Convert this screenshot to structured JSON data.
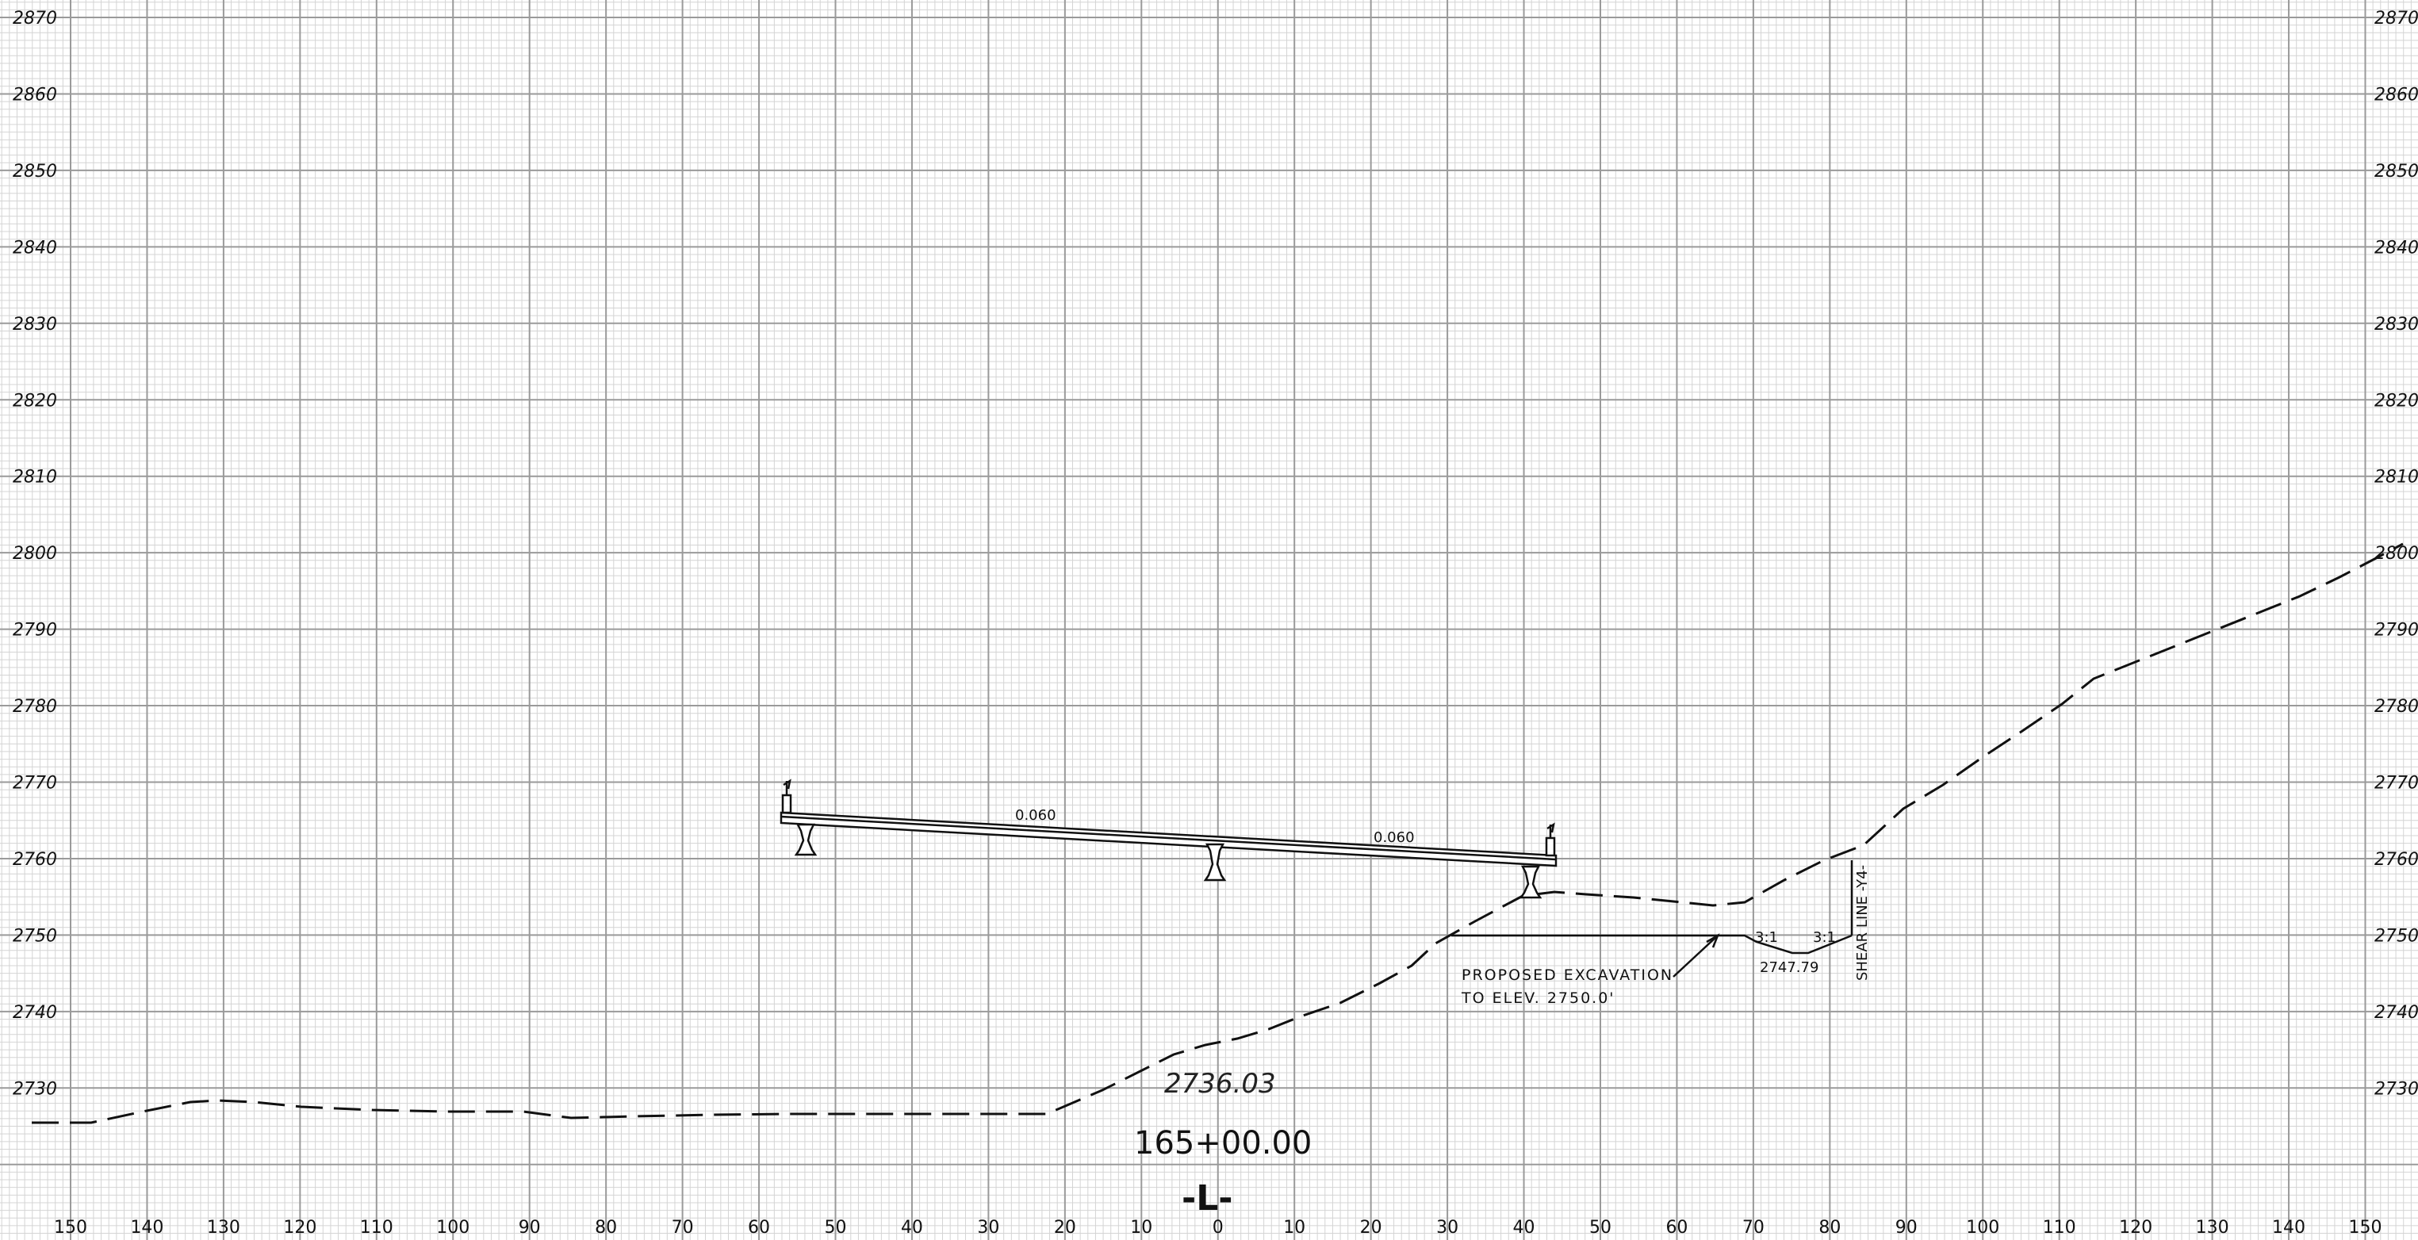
{
  "sheet": {
    "elevation_labels": [
      "2870",
      "2860",
      "2850",
      "2840",
      "2830",
      "2820",
      "2810",
      "2800",
      "2790",
      "2780",
      "2770",
      "2760",
      "2750",
      "2740",
      "2730"
    ],
    "offset_labels": [
      "150",
      "140",
      "130",
      "120",
      "110",
      "100",
      "90",
      "80",
      "70",
      "60",
      "50",
      "40",
      "30",
      "20",
      "10",
      "0",
      "10",
      "20",
      "30",
      "40",
      "50",
      "60",
      "70",
      "80",
      "90",
      "100",
      "110",
      "120",
      "130",
      "140",
      "150"
    ]
  },
  "bridge": {
    "slope_left": "0.060",
    "slope_right": "0.060"
  },
  "annotations": {
    "excavation_line1": "PROPOSED  EXCAVATION",
    "excavation_line2": "TO  ELEV. 2750.0'",
    "slope_left": "3:1",
    "slope_right": "3:1",
    "ditch_elevation": "2747.79",
    "shear_line": "SHEAR LINE -Y4-",
    "centerline_elevation": "2736.03",
    "station": "165+00.00",
    "alignment": "-L-"
  },
  "colors": {
    "minor_grid": "#d4d4d4",
    "major_grid": "#9a9a9a",
    "ink": "#111111"
  }
}
